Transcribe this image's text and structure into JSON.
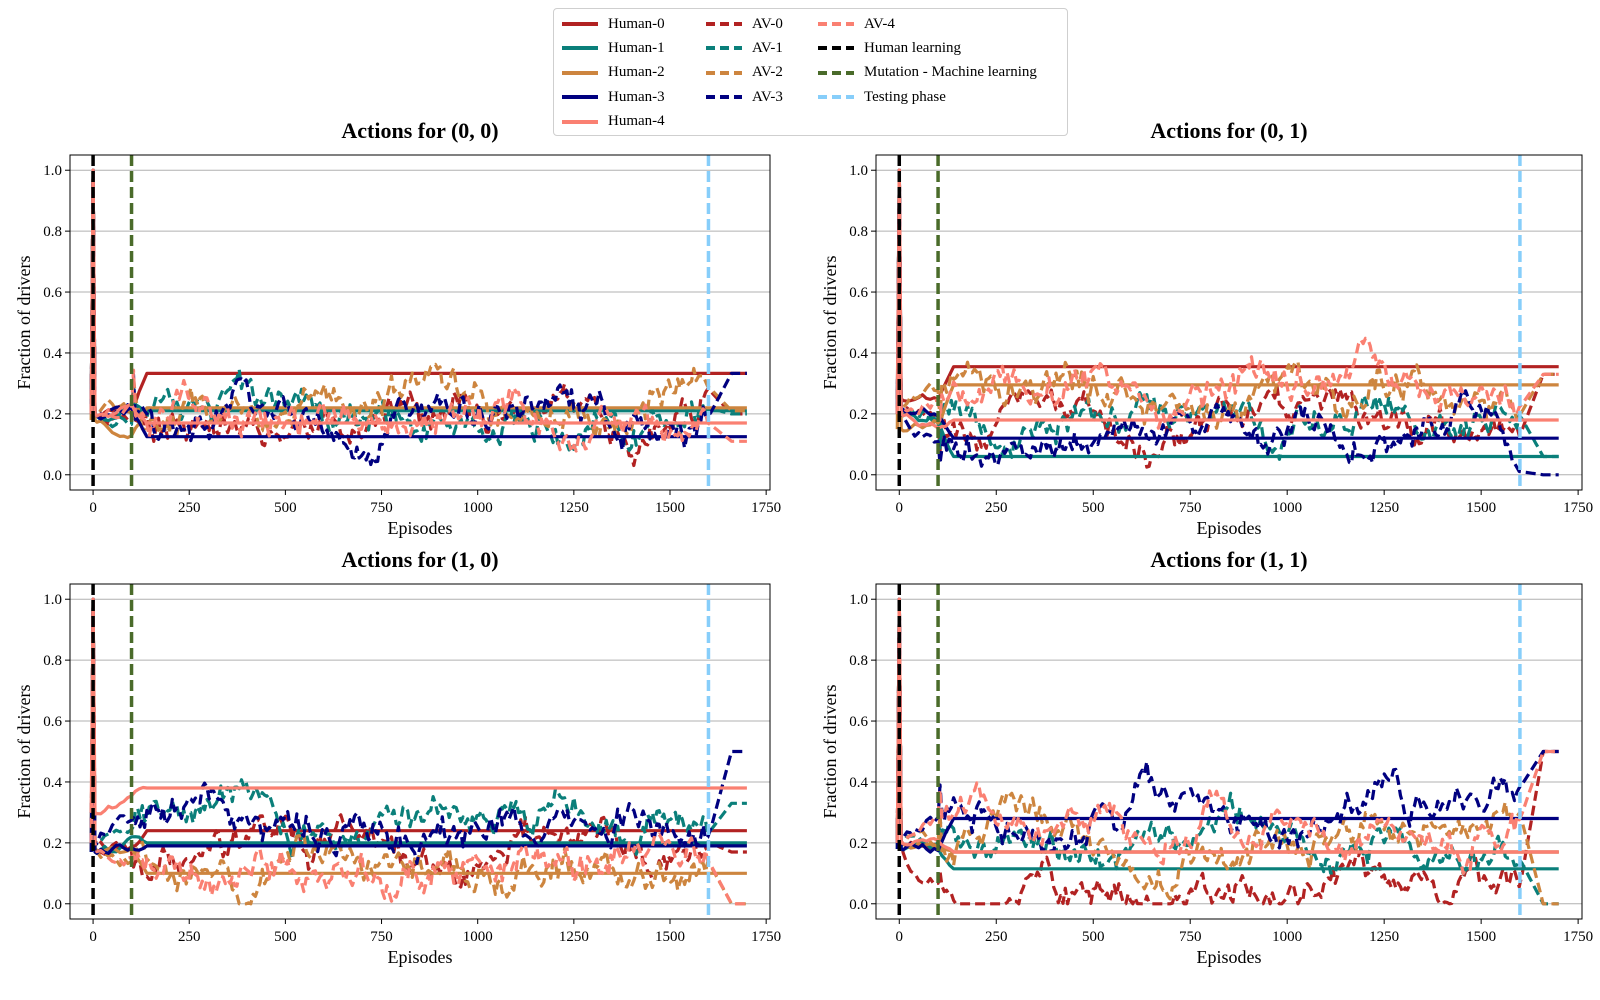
{
  "legend": {
    "entries": [
      {
        "label": "Human-0",
        "color": "#b22222",
        "dash": false
      },
      {
        "label": "Human-1",
        "color": "#0a7f7a",
        "dash": false
      },
      {
        "label": "Human-2",
        "color": "#cd853f",
        "dash": false
      },
      {
        "label": "Human-3",
        "color": "#000080",
        "dash": false
      },
      {
        "label": "Human-4",
        "color": "#fa8072",
        "dash": false
      },
      {
        "label": "AV-0",
        "color": "#b22222",
        "dash": true
      },
      {
        "label": "AV-1",
        "color": "#0a7f7a",
        "dash": true
      },
      {
        "label": "AV-2",
        "color": "#cd853f",
        "dash": true
      },
      {
        "label": "AV-3",
        "color": "#000080",
        "dash": true
      },
      {
        "label": "AV-4",
        "color": "#fa8072",
        "dash": true
      },
      {
        "label": "Human learning",
        "color": "#000000",
        "dash": true
      },
      {
        "label": "Mutation - Machine learning",
        "color": "#4a6b2a",
        "dash": true
      },
      {
        "label": "Testing phase",
        "color": "#87cefa",
        "dash": true
      }
    ]
  },
  "chart_data": [
    {
      "type": "line",
      "title": "Actions for (0, 0)",
      "xlabel": "Episodes",
      "ylabel": "Fraction of drivers",
      "xlim": [
        -60,
        1760
      ],
      "ylim": [
        -0.05,
        1.05
      ],
      "xticks": [
        0,
        250,
        500,
        750,
        1000,
        1250,
        1500,
        1750
      ],
      "yticks": [
        0.0,
        0.2,
        0.4,
        0.6,
        0.8,
        1.0
      ],
      "grid": "y",
      "vlines": [
        {
          "x": 0,
          "color": "#000000",
          "label": "Human learning"
        },
        {
          "x": 100,
          "color": "#4a6b2a",
          "label": "Mutation - Machine learning"
        },
        {
          "x": 1600,
          "color": "#87cefa",
          "label": "Testing phase"
        }
      ],
      "human_final": [
        0.333,
        0.21,
        0.22,
        0.125,
        0.17
      ],
      "human_start": [
        0.2,
        0.2,
        0.18,
        0.2,
        0.2
      ],
      "av_mean": [
        0.2,
        0.2,
        0.21,
        0.2,
        0.2
      ],
      "av_test": [
        0.2,
        0.2,
        0.21,
        0.333,
        0.11
      ]
    },
    {
      "type": "line",
      "title": "Actions for (0, 1)",
      "xlabel": "Episodes",
      "ylabel": "Fraction of drivers",
      "xlim": [
        -60,
        1760
      ],
      "ylim": [
        -0.05,
        1.05
      ],
      "xticks": [
        0,
        250,
        500,
        750,
        1000,
        1250,
        1500,
        1750
      ],
      "yticks": [
        0.0,
        0.2,
        0.4,
        0.6,
        0.8,
        1.0
      ],
      "grid": "y",
      "vlines": [
        {
          "x": 0,
          "color": "#000000",
          "label": "Human learning"
        },
        {
          "x": 100,
          "color": "#4a6b2a",
          "label": "Mutation - Machine learning"
        },
        {
          "x": 1600,
          "color": "#87cefa",
          "label": "Testing phase"
        }
      ],
      "human_final": [
        0.355,
        0.06,
        0.295,
        0.12,
        0.18
      ],
      "human_start": [
        0.25,
        0.2,
        0.15,
        0.22,
        0.2
      ],
      "av_mean": [
        0.2,
        0.2,
        0.28,
        0.12,
        0.25
      ],
      "av_test": [
        0.33,
        0.06,
        0.33,
        0.0,
        0.33
      ]
    },
    {
      "type": "line",
      "title": "Actions for (1, 0)",
      "xlabel": "Episodes",
      "ylabel": "Fraction of drivers",
      "xlim": [
        -60,
        1760
      ],
      "ylim": [
        -0.05,
        1.05
      ],
      "xticks": [
        0,
        250,
        500,
        750,
        1000,
        1250,
        1500,
        1750
      ],
      "yticks": [
        0.0,
        0.2,
        0.4,
        0.6,
        0.8,
        1.0
      ],
      "grid": "y",
      "vlines": [
        {
          "x": 0,
          "color": "#000000",
          "label": "Human learning"
        },
        {
          "x": 100,
          "color": "#4a6b2a",
          "label": "Mutation - Machine learning"
        },
        {
          "x": 1600,
          "color": "#87cefa",
          "label": "Testing phase"
        }
      ],
      "human_final": [
        0.24,
        0.2,
        0.1,
        0.19,
        0.38
      ],
      "human_start": [
        0.18,
        0.17,
        0.18,
        0.17,
        0.3
      ],
      "av_mean": [
        0.16,
        0.28,
        0.15,
        0.28,
        0.14
      ],
      "av_test": [
        0.17,
        0.33,
        0.0,
        0.5,
        0.0
      ]
    },
    {
      "type": "line",
      "title": "Actions for (1, 1)",
      "xlabel": "Episodes",
      "ylabel": "Fraction of drivers",
      "xlim": [
        -60,
        1760
      ],
      "ylim": [
        -0.05,
        1.05
      ],
      "xticks": [
        0,
        250,
        500,
        750,
        1000,
        1250,
        1500,
        1750
      ],
      "yticks": [
        0.0,
        0.2,
        0.4,
        0.6,
        0.8,
        1.0
      ],
      "grid": "y",
      "vlines": [
        {
          "x": 0,
          "color": "#000000",
          "label": "Human learning"
        },
        {
          "x": 100,
          "color": "#4a6b2a",
          "label": "Mutation - Machine learning"
        },
        {
          "x": 1600,
          "color": "#87cefa",
          "label": "Testing phase"
        }
      ],
      "human_final": [
        0.17,
        0.115,
        0.17,
        0.28,
        0.17
      ],
      "human_start": [
        0.2,
        0.18,
        0.2,
        0.18,
        0.2
      ],
      "av_mean": [
        0.06,
        0.22,
        0.22,
        0.3,
        0.27
      ],
      "av_test": [
        0.5,
        0.0,
        0.0,
        0.5,
        0.5
      ]
    }
  ]
}
